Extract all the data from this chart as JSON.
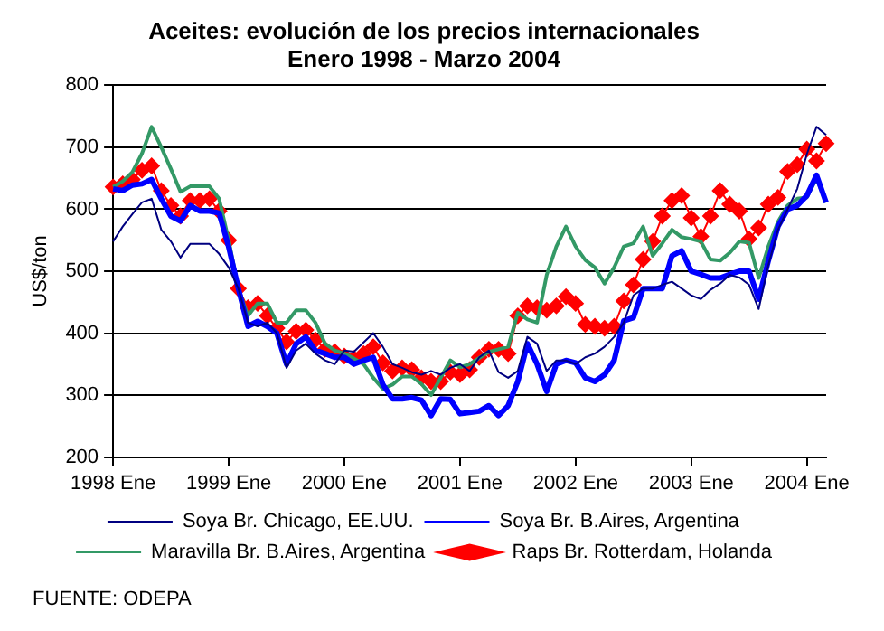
{
  "chart_data": {
    "type": "line",
    "title": "Aceites: evolución de los precios internacionales",
    "subtitle": "Enero 1998 - Marzo 2004",
    "ylabel": "US$/ton",
    "annotations": [
      "FUENTE: ODEPA"
    ],
    "categories": [
      "1998 Ene",
      null,
      null,
      null,
      null,
      null,
      null,
      null,
      null,
      null,
      null,
      null,
      "1999 Ene",
      null,
      null,
      null,
      null,
      null,
      null,
      null,
      null,
      null,
      null,
      null,
      "2000 Ene",
      null,
      null,
      null,
      null,
      null,
      null,
      null,
      null,
      null,
      null,
      null,
      "2001 Ene",
      null,
      null,
      null,
      null,
      null,
      null,
      null,
      null,
      null,
      null,
      null,
      "2002 Ene",
      null,
      null,
      null,
      null,
      null,
      null,
      null,
      null,
      null,
      null,
      null,
      "2003 Ene",
      null,
      null,
      null,
      null,
      null,
      null,
      null,
      null,
      null,
      null,
      null,
      "2004 Ene",
      null,
      null
    ],
    "ylim": [
      200,
      800
    ],
    "yticks": [
      200,
      300,
      400,
      500,
      600,
      700,
      800
    ],
    "grid": "y",
    "legend": "bottom",
    "marker": "none",
    "series": [
      {
        "name": "Soya Br. Chicago, EE.UU.",
        "color": "#000080",
        "values": [
          548,
          572,
          592,
          611,
          617,
          567,
          548,
          522,
          544,
          544,
          544,
          528,
          506,
          472,
          417,
          411,
          417,
          400,
          344,
          372,
          383,
          367,
          356,
          350,
          372,
          370,
          385,
          400,
          378,
          350,
          344,
          337,
          333,
          339,
          333,
          344,
          350,
          339,
          361,
          372,
          337,
          328,
          339,
          394,
          383,
          339,
          356,
          356,
          350,
          361,
          367,
          378,
          394,
          417,
          461,
          472,
          472,
          478,
          483,
          472,
          461,
          455,
          470,
          480,
          494,
          490,
          478,
          439,
          510,
          567,
          600,
          633,
          689,
          733,
          720
        ]
      },
      {
        "name": "Soya Br. B.Aires, Argentina",
        "color": "#0000ff",
        "values": [
          633,
          630,
          639,
          641,
          648,
          617,
          589,
          581,
          606,
          597,
          597,
          594,
          539,
          472,
          411,
          419,
          411,
          400,
          350,
          383,
          394,
          372,
          367,
          361,
          361,
          350,
          356,
          361,
          317,
          294,
          294,
          296,
          292,
          267,
          294,
          293,
          270,
          272,
          274,
          283,
          267,
          283,
          322,
          383,
          350,
          306,
          350,
          356,
          352,
          328,
          322,
          333,
          356,
          420,
          425,
          472,
          472,
          472,
          525,
          533,
          500,
          495,
          489,
          489,
          495,
          500,
          500,
          455,
          517,
          572,
          600,
          606,
          622,
          655,
          611
        ]
      },
      {
        "name": "Maravilla Br. B.Aires, Argentina",
        "color": "#339966",
        "values": [
          636,
          645,
          660,
          690,
          733,
          700,
          665,
          628,
          637,
          637,
          637,
          617,
          550,
          472,
          428,
          448,
          448,
          417,
          417,
          437,
          437,
          417,
          383,
          372,
          367,
          359,
          350,
          328,
          310,
          317,
          330,
          330,
          318,
          300,
          328,
          356,
          345,
          350,
          360,
          370,
          374,
          378,
          433,
          422,
          417,
          494,
          540,
          572,
          540,
          518,
          506,
          480,
          506,
          540,
          545,
          572,
          525,
          545,
          567,
          555,
          552,
          548,
          519,
          517,
          530,
          548,
          546,
          489,
          540,
          580,
          606,
          617,
          619,
          650,
          611
        ]
      },
      {
        "name": "Raps Br. Rotterdam, Holanda",
        "color": "#ff0000",
        "marker": "diamond",
        "values": [
          636,
          641,
          648,
          663,
          670,
          630,
          606,
          589,
          614,
          614,
          617,
          597,
          550,
          472,
          441,
          448,
          428,
          408,
          386,
          403,
          405,
          389,
          374,
          370,
          363,
          359,
          367,
          378,
          352,
          339,
          344,
          341,
          328,
          322,
          322,
          337,
          333,
          341,
          361,
          374,
          374,
          367,
          428,
          444,
          441,
          437,
          444,
          459,
          448,
          414,
          411,
          408,
          411,
          452,
          478,
          519,
          548,
          589,
          614,
          622,
          586,
          556,
          589,
          630,
          608,
          597,
          552,
          570,
          608,
          619,
          661,
          672,
          697,
          678,
          706
        ]
      }
    ]
  }
}
